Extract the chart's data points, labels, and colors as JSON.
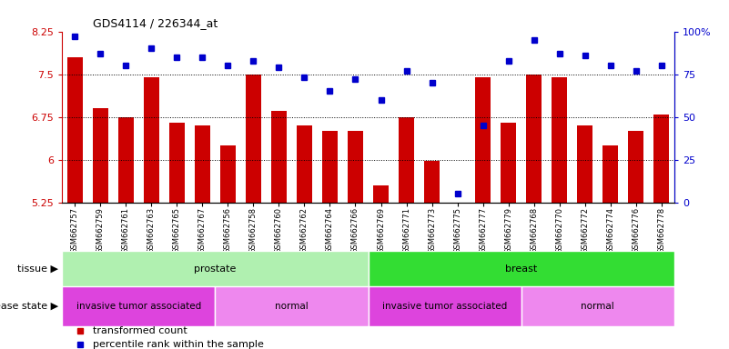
{
  "title": "GDS4114 / 226344_at",
  "samples": [
    "GSM662757",
    "GSM662759",
    "GSM662761",
    "GSM662763",
    "GSM662765",
    "GSM662767",
    "GSM662756",
    "GSM662758",
    "GSM662760",
    "GSM662762",
    "GSM662764",
    "GSM662766",
    "GSM662769",
    "GSM662771",
    "GSM662773",
    "GSM662775",
    "GSM662777",
    "GSM662779",
    "GSM662768",
    "GSM662770",
    "GSM662772",
    "GSM662774",
    "GSM662776",
    "GSM662778"
  ],
  "bar_values": [
    7.8,
    6.9,
    6.75,
    7.45,
    6.65,
    6.6,
    6.25,
    7.5,
    6.85,
    6.6,
    6.5,
    6.5,
    5.55,
    6.75,
    5.98,
    5.25,
    7.45,
    6.65,
    7.5,
    7.45,
    6.6,
    6.25,
    6.5,
    6.8
  ],
  "percentile_values": [
    97,
    87,
    80,
    90,
    85,
    85,
    80,
    83,
    79,
    73,
    65,
    72,
    60,
    77,
    70,
    5,
    45,
    83,
    95,
    87,
    86,
    80,
    77,
    80
  ],
  "bar_color": "#cc0000",
  "dot_color": "#0000cc",
  "ylim_left": [
    5.25,
    8.25
  ],
  "ylim_right": [
    0,
    100
  ],
  "yticks_left": [
    5.25,
    6.0,
    6.75,
    7.5,
    8.25
  ],
  "yticks_right": [
    0,
    25,
    50,
    75,
    100
  ],
  "yticklabels_left": [
    "5.25",
    "6",
    "6.75",
    "7.5",
    "8.25"
  ],
  "yticklabels_right": [
    "0",
    "25",
    "50",
    "75",
    "100%"
  ],
  "hlines": [
    7.5,
    6.75,
    6.0
  ],
  "tissue_groups": [
    {
      "label": "prostate",
      "start": 0,
      "end": 12,
      "color": "#b0f0b0"
    },
    {
      "label": "breast",
      "start": 12,
      "end": 24,
      "color": "#33dd33"
    }
  ],
  "disease_groups": [
    {
      "label": "invasive tumor associated",
      "start": 0,
      "end": 6,
      "color": "#dd44dd"
    },
    {
      "label": "normal",
      "start": 6,
      "end": 12,
      "color": "#ee88ee"
    },
    {
      "label": "invasive tumor associated",
      "start": 12,
      "end": 18,
      "color": "#dd44dd"
    },
    {
      "label": "normal",
      "start": 18,
      "end": 24,
      "color": "#ee88ee"
    }
  ],
  "legend_items": [
    {
      "label": "transformed count",
      "color": "#cc0000"
    },
    {
      "label": "percentile rank within the sample",
      "color": "#0000cc"
    }
  ],
  "background_color": "#ffffff"
}
